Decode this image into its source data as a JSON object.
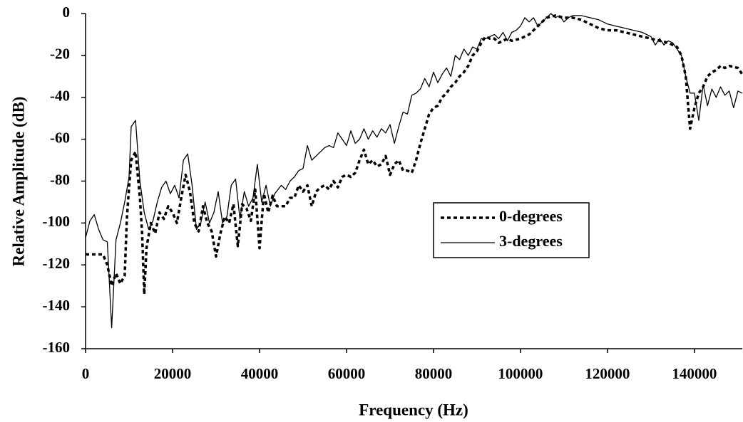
{
  "chart_data": {
    "type": "line",
    "x_label": "Frequency (Hz)",
    "y_label": "Relative Amplitude (dB)",
    "xlim": [
      0,
      151000
    ],
    "ylim": [
      -160,
      0
    ],
    "xticks": [
      0,
      20000,
      40000,
      60000,
      80000,
      100000,
      120000,
      140000
    ],
    "yticks": [
      0,
      -20,
      -40,
      -60,
      -80,
      -100,
      -120,
      -140,
      -160
    ],
    "legend": "center-right",
    "series": [
      {
        "name": "0-degrees",
        "color": "#000000",
        "style": "dashed",
        "x": [
          0,
          4000,
          5000,
          6000,
          7000,
          8000,
          9000,
          9500,
          10000,
          10500,
          11500,
          12500,
          13000,
          13500,
          14000,
          15000,
          16000,
          17000,
          18000,
          19000,
          20000,
          21000,
          22000,
          23000,
          24000,
          25000,
          26000,
          27000,
          28000,
          29000,
          30000,
          31000,
          32000,
          33000,
          34000,
          35000,
          36000,
          37000,
          38000,
          39000,
          40000,
          41000,
          42000,
          43000,
          44000,
          46000,
          47000,
          48000,
          49000,
          50000,
          51000,
          52000,
          53000,
          54000,
          55000,
          56000,
          57000,
          58000,
          59000,
          60000,
          61000,
          62000,
          63000,
          64000,
          65000,
          66000,
          67000,
          68000,
          69000,
          70000,
          71000,
          72000,
          73000,
          74000,
          75000,
          76000,
          77000,
          78000,
          79000,
          80000,
          81000,
          82000,
          83000,
          84000,
          85000,
          86000,
          87000,
          88000,
          89000,
          90000,
          91000,
          92000,
          93000,
          94000,
          95000,
          96000,
          97000,
          98000,
          100000,
          102000,
          104000,
          106000,
          108000,
          110000,
          112000,
          114000,
          116000,
          118000,
          120000,
          122000,
          124000,
          126000,
          128000,
          130000,
          132000,
          134000,
          136000,
          137000,
          138000,
          139000,
          140000,
          141000,
          142000,
          143000,
          144000,
          145000,
          146000,
          147000,
          148000,
          150000,
          151000
        ],
        "values": [
          -115,
          -115,
          -120,
          -130,
          -124,
          -129,
          -125,
          -98,
          -83,
          -70,
          -66,
          -88,
          -105,
          -134,
          -112,
          -100,
          -105,
          -95,
          -98,
          -92,
          -95,
          -100,
          -88,
          -77,
          -85,
          -100,
          -104,
          -92,
          -100,
          -104,
          -116,
          -105,
          -97,
          -100,
          -91,
          -111,
          -91,
          -93,
          -99,
          -84,
          -112,
          -86,
          -95,
          -87,
          -92,
          -92,
          -88,
          -88,
          -82,
          -85,
          -82,
          -92,
          -85,
          -83,
          -82,
          -84,
          -80,
          -83,
          -78,
          -77,
          -78,
          -76,
          -70,
          -65,
          -72,
          -70,
          -73,
          -72,
          -68,
          -77,
          -72,
          -70,
          -75,
          -75,
          -76,
          -70,
          -62,
          -55,
          -48,
          -45,
          -44,
          -40,
          -38,
          -35,
          -33,
          -30,
          -28,
          -25,
          -20,
          -18,
          -14,
          -11,
          -12,
          -12,
          -14,
          -13,
          -12,
          -13,
          -12,
          -10,
          -6,
          -2,
          -1,
          -2,
          -2,
          -3,
          -5,
          -7,
          -8,
          -8,
          -9,
          -10,
          -11,
          -12,
          -13,
          -14,
          -16,
          -20,
          -30,
          -55,
          -45,
          -38,
          -35,
          -30,
          -28,
          -27,
          -25,
          -26,
          -25,
          -26,
          -29
        ]
      },
      {
        "name": "3-degrees",
        "color": "#000000",
        "style": "solid",
        "x": [
          0,
          1000,
          2000,
          3000,
          4000,
          5000,
          6000,
          7000,
          8000,
          9000,
          10000,
          10500,
          11500,
          12500,
          13500,
          14500,
          15500,
          16500,
          17500,
          18500,
          19500,
          20500,
          21500,
          22500,
          23500,
          24500,
          25500,
          26500,
          27500,
          28500,
          29500,
          30500,
          31500,
          32500,
          33500,
          34500,
          35500,
          36500,
          37500,
          38500,
          39500,
          40500,
          41500,
          42500,
          43500,
          45000,
          46000,
          47000,
          48000,
          49000,
          50000,
          51000,
          52000,
          53000,
          54000,
          55000,
          56000,
          57000,
          58000,
          59000,
          60000,
          61000,
          62000,
          63000,
          64000,
          65000,
          66000,
          67000,
          68000,
          69000,
          70000,
          71000,
          72000,
          73000,
          74000,
          75000,
          76000,
          77000,
          78000,
          79000,
          80000,
          81000,
          82000,
          83000,
          84000,
          85000,
          86000,
          87000,
          88000,
          89000,
          90000,
          91000,
          92000,
          93000,
          94000,
          95000,
          96000,
          97000,
          98000,
          99000,
          100000,
          101000,
          102000,
          103000,
          104000,
          105000,
          106000,
          107000,
          108000,
          109000,
          110000,
          111000,
          112000,
          114000,
          116000,
          118000,
          120000,
          122000,
          124000,
          126000,
          128000,
          130000,
          131000,
          132000,
          133000,
          134000,
          135000,
          136000,
          137000,
          138000,
          139000,
          140000,
          141000,
          142000,
          143000,
          144000,
          145000,
          146000,
          147000,
          148000,
          149000,
          150000,
          151000
        ],
        "values": [
          -107,
          -99,
          -96,
          -103,
          -108,
          -109,
          -150,
          -108,
          -100,
          -90,
          -78,
          -54,
          -51,
          -80,
          -95,
          -103,
          -99,
          -90,
          -83,
          -80,
          -86,
          -82,
          -88,
          -70,
          -67,
          -82,
          -103,
          -100,
          -90,
          -100,
          -95,
          -85,
          -100,
          -97,
          -82,
          -79,
          -98,
          -85,
          -92,
          -88,
          -72,
          -90,
          -82,
          -92,
          -86,
          -82,
          -84,
          -80,
          -78,
          -75,
          -74,
          -63,
          -70,
          -68,
          -66,
          -64,
          -63,
          -64,
          -57,
          -60,
          -63,
          -56,
          -62,
          -60,
          -55,
          -60,
          -56,
          -59,
          -55,
          -57,
          -53,
          -62,
          -54,
          -47,
          -48,
          -39,
          -38,
          -36,
          -31,
          -35,
          -28,
          -33,
          -29,
          -26,
          -30,
          -20,
          -22,
          -17,
          -20,
          -16,
          -17,
          -12,
          -12,
          -11,
          -10,
          -12,
          -9,
          -13,
          -9,
          -8,
          -6,
          -2,
          -4,
          -2,
          -6,
          -4,
          -2,
          0,
          -2,
          -1,
          -4,
          -2,
          -1,
          -1,
          -2,
          -3,
          -5,
          -6,
          -7,
          -8,
          -9,
          -11,
          -15,
          -12,
          -15,
          -13,
          -14,
          -17,
          -20,
          -30,
          -38,
          -38,
          -51,
          -34,
          -44,
          -36,
          -40,
          -35,
          -39,
          -37,
          -45,
          -37,
          -38
        ]
      }
    ]
  }
}
